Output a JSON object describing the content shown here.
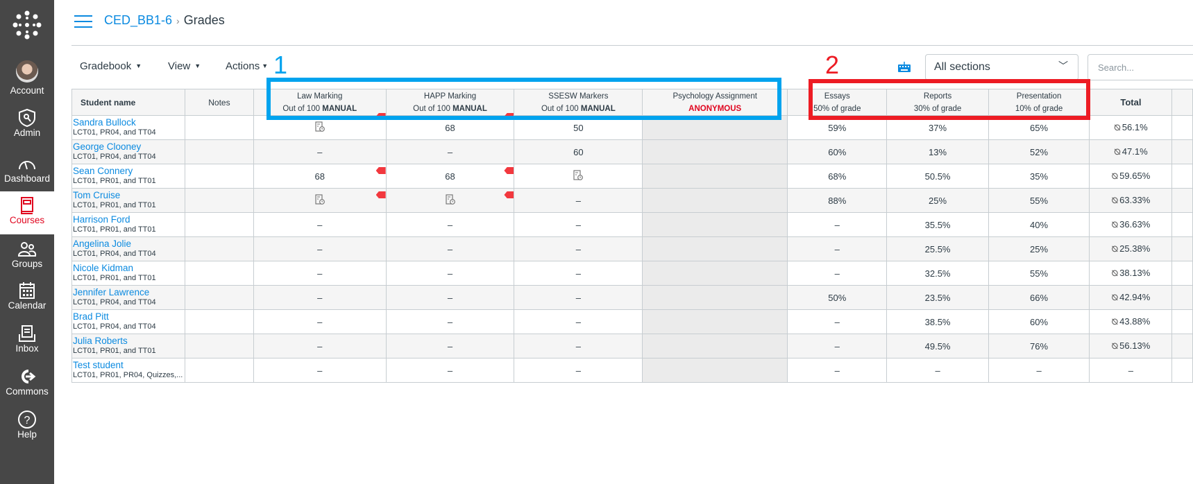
{
  "sidebar": {
    "items": [
      {
        "label": "Account",
        "icon": "avatar"
      },
      {
        "label": "Admin",
        "icon": "shield-icon"
      },
      {
        "label": "Dashboard",
        "icon": "dashboard-icon"
      },
      {
        "label": "Courses",
        "icon": "book-icon",
        "active": true
      },
      {
        "label": "Groups",
        "icon": "groups-icon"
      },
      {
        "label": "Calendar",
        "icon": "calendar-icon"
      },
      {
        "label": "Inbox",
        "icon": "inbox-icon"
      },
      {
        "label": "Commons",
        "icon": "commons-icon"
      },
      {
        "label": "Help",
        "icon": "help-icon"
      }
    ]
  },
  "breadcrumb": {
    "course": "CED_BB1-6",
    "page": "Grades",
    "separator": "›"
  },
  "toolbar": {
    "gradebook": "Gradebook",
    "view": "View",
    "actions": "Actions",
    "sections": "All sections",
    "search_placeholder": "Search..."
  },
  "annotations": {
    "one": "1",
    "two": "2",
    "one_color": "#00a3ee",
    "two_color": "#ed1c24"
  },
  "table": {
    "headers": {
      "student": "Student name",
      "notes": "Notes",
      "total": "Total"
    },
    "assignments": [
      {
        "title": "Law Marking",
        "sub": "Out of 100",
        "tag": "MANUAL"
      },
      {
        "title": "HAPP Marking",
        "sub": "Out of 100",
        "tag": "MANUAL"
      },
      {
        "title": "SSESW Markers",
        "sub": "Out of 100",
        "tag": "MANUAL"
      },
      {
        "title": "Psychology Assignment",
        "sub": "",
        "tag": "ANONYMOUS"
      }
    ],
    "groups": [
      {
        "title": "Essays",
        "weight": "50% of grade"
      },
      {
        "title": "Reports",
        "weight": "30% of grade"
      },
      {
        "title": "Presentation",
        "weight": "10% of grade"
      }
    ],
    "rows": [
      {
        "name": "Sandra Bullock",
        "sections": "LCT01, PR04, and TT04",
        "law": "icon",
        "law_flag": true,
        "happ": "68",
        "happ_flag": true,
        "ssesw": "50",
        "essays": "59%",
        "reports": "37%",
        "pres": "65%",
        "total": "56.1%"
      },
      {
        "name": "George Clooney",
        "sections": "LCT01, PR04, and TT04",
        "law": "–",
        "happ": "–",
        "ssesw": "60",
        "essays": "60%",
        "reports": "13%",
        "pres": "52%",
        "total": "47.1%"
      },
      {
        "name": "Sean Connery",
        "sections": "LCT01, PR01, and TT01",
        "law": "68",
        "law_flag": true,
        "happ": "68",
        "happ_flag": true,
        "ssesw": "icon",
        "essays": "68%",
        "reports": "50.5%",
        "pres": "35%",
        "total": "59.65%"
      },
      {
        "name": "Tom Cruise",
        "sections": "LCT01, PR01, and TT01",
        "law": "icon",
        "law_flag": true,
        "happ": "icon",
        "happ_flag": true,
        "ssesw": "–",
        "essays": "88%",
        "reports": "25%",
        "pres": "55%",
        "total": "63.33%"
      },
      {
        "name": "Harrison Ford",
        "sections": "LCT01, PR01, and TT01",
        "law": "–",
        "happ": "–",
        "ssesw": "–",
        "essays": "–",
        "reports": "35.5%",
        "pres": "40%",
        "total": "36.63%"
      },
      {
        "name": "Angelina Jolie",
        "sections": "LCT01, PR04, and TT04",
        "law": "–",
        "happ": "–",
        "ssesw": "–",
        "essays": "–",
        "reports": "25.5%",
        "pres": "25%",
        "total": "25.38%"
      },
      {
        "name": "Nicole Kidman",
        "sections": "LCT01, PR01, and TT01",
        "law": "–",
        "happ": "–",
        "ssesw": "–",
        "essays": "–",
        "reports": "32.5%",
        "pres": "55%",
        "total": "38.13%"
      },
      {
        "name": "Jennifer Lawrence",
        "sections": "LCT01, PR04, and TT04",
        "law": "–",
        "happ": "–",
        "ssesw": "–",
        "essays": "50%",
        "reports": "23.5%",
        "pres": "66%",
        "total": "42.94%"
      },
      {
        "name": "Brad Pitt",
        "sections": "LCT01, PR04, and TT04",
        "law": "–",
        "happ": "–",
        "ssesw": "–",
        "essays": "–",
        "reports": "38.5%",
        "pres": "60%",
        "total": "43.88%"
      },
      {
        "name": "Julia Roberts",
        "sections": "LCT01, PR01, and TT01",
        "law": "–",
        "happ": "–",
        "ssesw": "–",
        "essays": "–",
        "reports": "49.5%",
        "pres": "76%",
        "total": "56.13%"
      },
      {
        "name": "Test student",
        "sections": "LCT01, PR01, PR04, Quizzes,...",
        "law": "–",
        "happ": "–",
        "ssesw": "–",
        "essays": "–",
        "reports": "–",
        "pres": "–",
        "total": "–",
        "no_eye": true
      }
    ]
  }
}
